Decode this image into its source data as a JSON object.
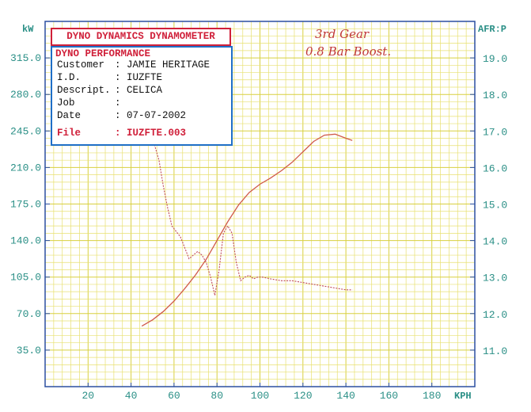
{
  "title_box": "DYNO DYNAMICS DYNAMOMETER",
  "info": {
    "heading": "DYNO PERFORMANCE",
    "rows": [
      {
        "label": "Customer",
        "value": "JAMIE HERITAGE"
      },
      {
        "label": "I.D.",
        "value": "IUZFTE"
      },
      {
        "label": "Descript.",
        "value": "CELICA"
      },
      {
        "label": "Job",
        "value": ""
      },
      {
        "label": "Date",
        "value": "07-07-2002"
      }
    ],
    "file": {
      "label": "File",
      "value": "IUZFTE.003"
    }
  },
  "annotation": [
    "3rd Gear",
    "0.8 Bar Boost."
  ],
  "colors": {
    "axis_text": "#2a8f86",
    "grid": "#e8e070",
    "grid_major": "#d8d040",
    "frame": "#2b4fa0",
    "power_line": "#d05a4a",
    "afr_line": "#c04a5a",
    "title_border": "#d0203a",
    "info_border": "#1f6fc7"
  },
  "chart_data": {
    "type": "line",
    "xlabel": "KPH",
    "ylabel": "kW",
    "y2label": "AFR:P",
    "xlim": [
      0,
      200
    ],
    "ylim": [
      0,
      350
    ],
    "y2lim": [
      10,
      20
    ],
    "xticks": [
      20,
      40,
      60,
      80,
      100,
      120,
      140,
      160,
      180
    ],
    "yticks": [
      35.0,
      70.0,
      105.0,
      140.0,
      175.0,
      210.0,
      245.0,
      280.0,
      315.0
    ],
    "y2ticks": [
      11.0,
      12.0,
      13.0,
      14.0,
      15.0,
      16.0,
      17.0,
      18.0,
      19.0
    ],
    "grid": true,
    "series": [
      {
        "axis": "kW",
        "x": [
          45,
          50,
          55,
          60,
          65,
          70,
          75,
          80,
          85,
          90,
          95,
          100,
          105,
          110,
          115,
          120,
          125,
          130,
          135,
          140,
          143
        ],
        "values": [
          58,
          64,
          72,
          82,
          94,
          107,
          122,
          140,
          158,
          174,
          186,
          194,
          200,
          207,
          215,
          225,
          235,
          241,
          242,
          238,
          236
        ]
      },
      {
        "axis": "AFR",
        "x": [
          45,
          48,
          51,
          53,
          55,
          57,
          59,
          61,
          63,
          65,
          67,
          69,
          71,
          73,
          75,
          77,
          79,
          81,
          83,
          85,
          87,
          89,
          91,
          93,
          95,
          97,
          99,
          101,
          105,
          110,
          115,
          120,
          125,
          130,
          135,
          140,
          143
        ],
        "values": [
          16.8,
          16.7,
          16.6,
          16.2,
          15.5,
          14.9,
          14.4,
          14.25,
          14.1,
          13.8,
          13.5,
          13.6,
          13.7,
          13.6,
          13.4,
          13.0,
          12.5,
          13.2,
          14.2,
          14.4,
          14.2,
          13.4,
          12.9,
          13.0,
          13.05,
          12.95,
          13.0,
          13.0,
          12.95,
          12.9,
          12.9,
          12.85,
          12.8,
          12.75,
          12.7,
          12.65,
          12.65
        ]
      }
    ]
  }
}
